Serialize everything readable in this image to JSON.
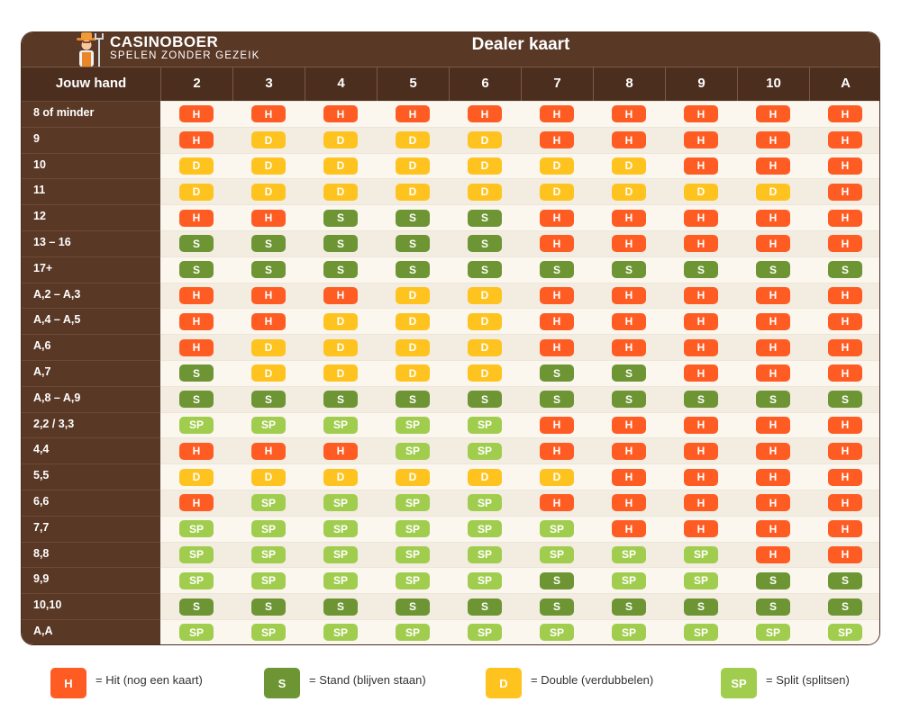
{
  "logo": {
    "title": "CASINOBOER",
    "subtitle": "SPELEN ZONDER GEZEIK"
  },
  "dealer_title": "Dealer kaart",
  "header": {
    "first": "Jouw hand",
    "cards": [
      "2",
      "3",
      "4",
      "5",
      "6",
      "7",
      "8",
      "9",
      "10",
      "A"
    ]
  },
  "rows": [
    {
      "label": "8 of minder",
      "cells": [
        "H",
        "H",
        "H",
        "H",
        "H",
        "H",
        "H",
        "H",
        "H",
        "H"
      ]
    },
    {
      "label": "9",
      "cells": [
        "H",
        "D",
        "D",
        "D",
        "D",
        "H",
        "H",
        "H",
        "H",
        "H"
      ]
    },
    {
      "label": "10",
      "cells": [
        "D",
        "D",
        "D",
        "D",
        "D",
        "D",
        "D",
        "H",
        "H",
        "H"
      ]
    },
    {
      "label": "11",
      "cells": [
        "D",
        "D",
        "D",
        "D",
        "D",
        "D",
        "D",
        "D",
        "D",
        "H"
      ]
    },
    {
      "label": "12",
      "cells": [
        "H",
        "H",
        "S",
        "S",
        "S",
        "H",
        "H",
        "H",
        "H",
        "H"
      ]
    },
    {
      "label": "13 – 16",
      "cells": [
        "S",
        "S",
        "S",
        "S",
        "S",
        "H",
        "H",
        "H",
        "H",
        "H"
      ]
    },
    {
      "label": "17+",
      "cells": [
        "S",
        "S",
        "S",
        "S",
        "S",
        "S",
        "S",
        "S",
        "S",
        "S"
      ]
    },
    {
      "label": "A,2 – A,3",
      "cells": [
        "H",
        "H",
        "H",
        "D",
        "D",
        "H",
        "H",
        "H",
        "H",
        "H"
      ]
    },
    {
      "label": "A,4 – A,5",
      "cells": [
        "H",
        "H",
        "D",
        "D",
        "D",
        "H",
        "H",
        "H",
        "H",
        "H"
      ]
    },
    {
      "label": "A,6",
      "cells": [
        "H",
        "D",
        "D",
        "D",
        "D",
        "H",
        "H",
        "H",
        "H",
        "H"
      ]
    },
    {
      "label": "A,7",
      "cells": [
        "S",
        "D",
        "D",
        "D",
        "D",
        "S",
        "S",
        "H",
        "H",
        "H"
      ]
    },
    {
      "label": "A,8 – A,9",
      "cells": [
        "S",
        "S",
        "S",
        "S",
        "S",
        "S",
        "S",
        "S",
        "S",
        "S"
      ]
    },
    {
      "label": "2,2 / 3,3",
      "cells": [
        "SP",
        "SP",
        "SP",
        "SP",
        "SP",
        "H",
        "H",
        "H",
        "H",
        "H"
      ]
    },
    {
      "label": "4,4",
      "cells": [
        "H",
        "H",
        "H",
        "SP",
        "SP",
        "H",
        "H",
        "H",
        "H",
        "H"
      ]
    },
    {
      "label": "5,5",
      "cells": [
        "D",
        "D",
        "D",
        "D",
        "D",
        "D",
        "H",
        "H",
        "H",
        "H"
      ]
    },
    {
      "label": "6,6",
      "cells": [
        "H",
        "SP",
        "SP",
        "SP",
        "SP",
        "H",
        "H",
        "H",
        "H",
        "H"
      ]
    },
    {
      "label": "7,7",
      "cells": [
        "SP",
        "SP",
        "SP",
        "SP",
        "SP",
        "SP",
        "H",
        "H",
        "H",
        "H"
      ]
    },
    {
      "label": "8,8",
      "cells": [
        "SP",
        "SP",
        "SP",
        "SP",
        "SP",
        "SP",
        "SP",
        "SP",
        "H",
        "H"
      ]
    },
    {
      "label": "9,9",
      "cells": [
        "SP",
        "SP",
        "SP",
        "SP",
        "SP",
        "S",
        "SP",
        "SP",
        "S",
        "S"
      ]
    },
    {
      "label": "10,10",
      "cells": [
        "S",
        "S",
        "S",
        "S",
        "S",
        "S",
        "S",
        "S",
        "S",
        "S"
      ]
    },
    {
      "label": "A,A",
      "cells": [
        "SP",
        "SP",
        "SP",
        "SP",
        "SP",
        "SP",
        "SP",
        "SP",
        "SP",
        "SP"
      ]
    }
  ],
  "legend": [
    {
      "code": "H",
      "text": "= Hit (nog een kaart)"
    },
    {
      "code": "S",
      "text": "= Stand (blijven staan)"
    },
    {
      "code": "D",
      "text": "= Double (verdubbelen)"
    },
    {
      "code": "SP",
      "text": "= Split (splitsen)"
    }
  ],
  "colors": {
    "H": "#ff5c24",
    "S": "#6d9533",
    "D": "#ffc31f",
    "SP": "#a1cd4e",
    "header_brown": "#5a3826",
    "dark_brown": "#4c2e1e"
  }
}
